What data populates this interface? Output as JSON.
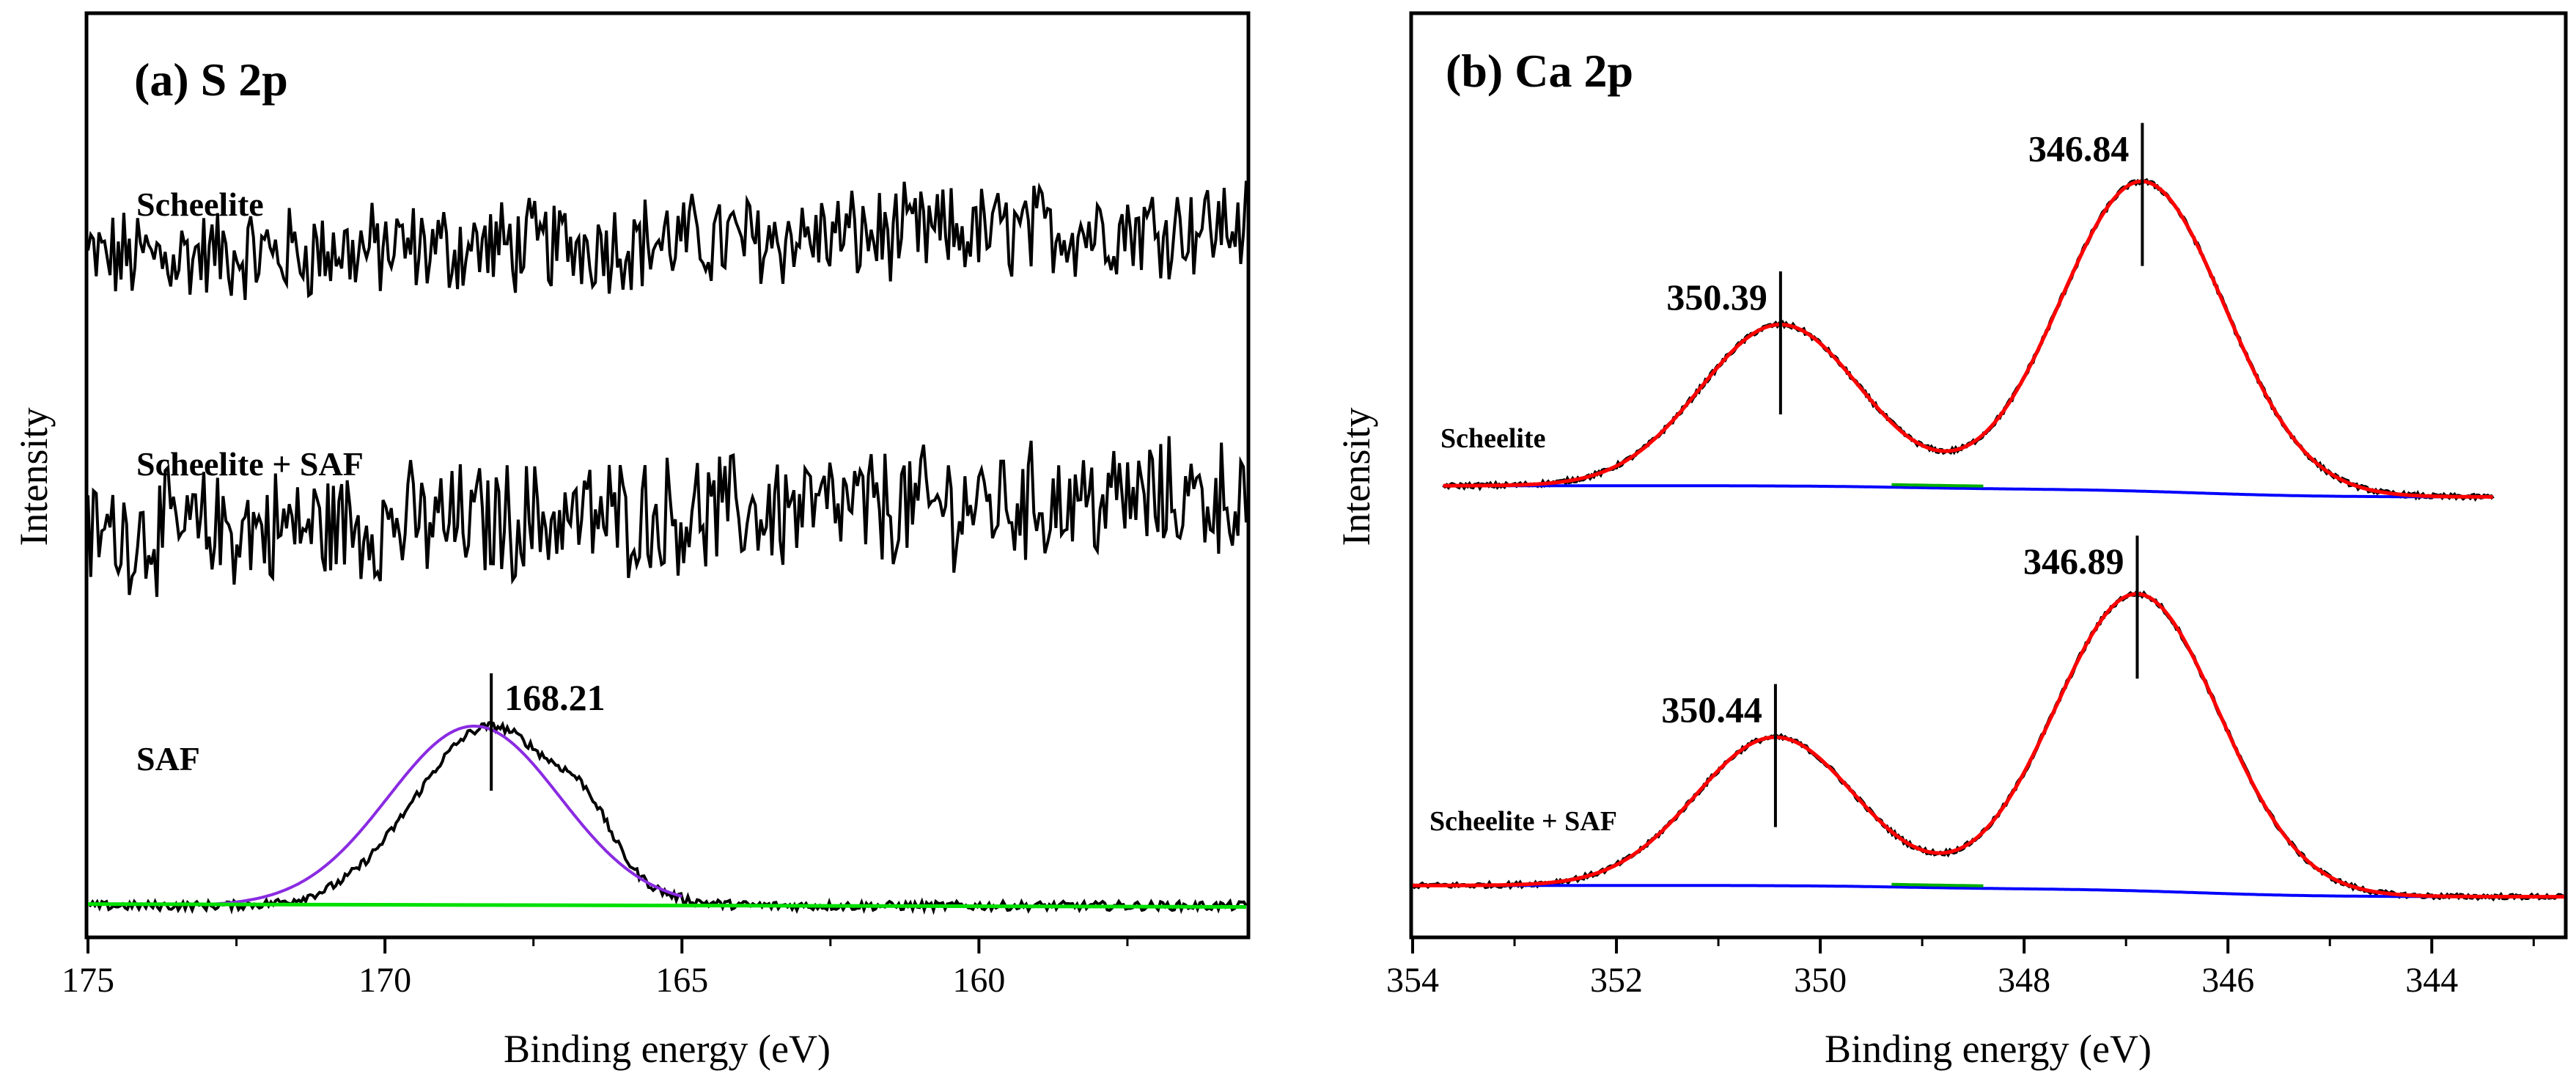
{
  "chart_data": [
    {
      "type": "line",
      "panel": "a",
      "title": "(a) S 2p",
      "xlabel": "Binding energy (eV)",
      "ylabel": "Intensity",
      "xlim": [
        175,
        155.5
      ],
      "x_reversed": true,
      "xticks": [
        175,
        170,
        165,
        160
      ],
      "xtick_labels": [
        "175",
        "170",
        "165",
        "160"
      ],
      "grid": false,
      "series": [
        {
          "name": "Scheelite",
          "style": "noisy",
          "color": "#000000",
          "x_range": [
            175,
            155.5
          ],
          "level_start": 0.5,
          "level_end": 0.9,
          "noise": 0.5
        },
        {
          "name": "Scheelite + SAF",
          "style": "noisy",
          "color": "#000000",
          "x_range": [
            175,
            155.5
          ],
          "level_start": 0.4,
          "level_end": 0.8,
          "noise": 0.55
        },
        {
          "name": "SAF",
          "style": "raw",
          "color": "#000000",
          "baseline": 0,
          "peak": {
            "center": 168.21,
            "fwhm": 3.0,
            "height": 1.0
          },
          "shoulder": {
            "center": 166.6,
            "fwhm": 1.0,
            "height": 0.2
          }
        },
        {
          "name": "SAF fit",
          "style": "fit",
          "color": "#8a2be2",
          "baseline": 0,
          "peak": {
            "center": 168.5,
            "fwhm": 3.4,
            "height": 1.0
          }
        },
        {
          "name": "SAF background",
          "style": "background",
          "color": "#00e000",
          "x": [
            175,
            155.5
          ],
          "y": [
            0.02,
            -0.02
          ]
        }
      ],
      "annotations": [
        {
          "x": 168.21,
          "text": "168.21"
        }
      ]
    },
    {
      "type": "line",
      "panel": "b",
      "title": "(b) Ca 2p",
      "xlabel": "Binding energy (eV)",
      "ylabel": "Intensity",
      "xlim": [
        354,
        342.7
      ],
      "x_reversed": true,
      "xticks": [
        354,
        352,
        350,
        348,
        346,
        344
      ],
      "xtick_labels": [
        "354",
        "352",
        "350",
        "348",
        "346",
        "344"
      ],
      "grid": false,
      "series": [
        {
          "name": "Scheelite",
          "style": "xps",
          "x_range": [
            353.7,
            343.4
          ],
          "baseline": 0,
          "peaks": [
            {
              "center": 350.39,
              "fwhm": 1.85,
              "height": 0.5
            },
            {
              "center": 346.84,
              "fwhm": 1.9,
              "height": 0.96
            }
          ],
          "annotations": [
            {
              "x": 350.39,
              "text": "350.39"
            },
            {
              "x": 346.84,
              "text": "346.84"
            }
          ]
        },
        {
          "name": "Scheelite + SAF",
          "style": "xps",
          "x_range": [
            354,
            342.7
          ],
          "baseline": 0,
          "peaks": [
            {
              "center": 350.44,
              "fwhm": 1.85,
              "height": 0.46
            },
            {
              "center": 346.89,
              "fwhm": 1.9,
              "height": 0.92
            }
          ],
          "annotations": [
            {
              "x": 350.44,
              "text": "350.44"
            },
            {
              "x": 346.89,
              "text": "346.89"
            }
          ]
        }
      ],
      "colors": {
        "raw": "#000000",
        "fit": "#ff0000",
        "background": "#0000ff",
        "component": "#00b000"
      }
    }
  ]
}
